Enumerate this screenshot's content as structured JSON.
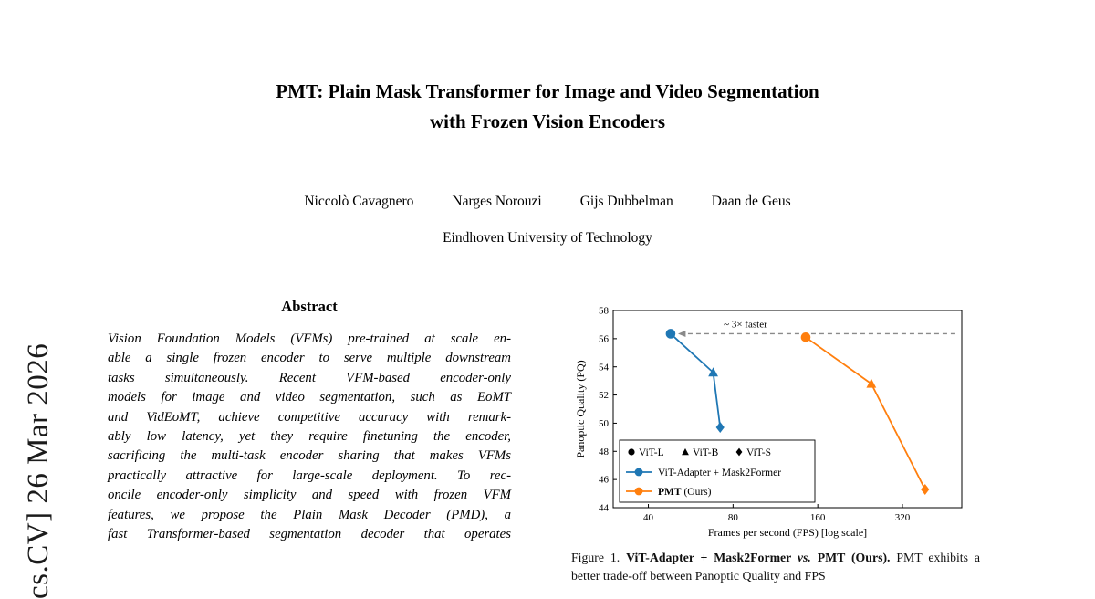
{
  "arxiv": {
    "label": "cs.CV]  26 Mar 2026"
  },
  "title": {
    "line1": "PMT: Plain Mask Transformer for Image and Video Segmentation",
    "line2": "with Frozen Vision Encoders"
  },
  "authors": [
    "Niccolò Cavagnero",
    "Narges Norouzi",
    "Gijs Dubbelman",
    "Daan de Geus"
  ],
  "affiliation": "Eindhoven University of Technology",
  "abstract": {
    "heading": "Abstract",
    "lines": [
      "Vision Foundation Models (VFMs) pre-trained at scale en-",
      "able a single frozen encoder to serve multiple downstream",
      "tasks simultaneously.  Recent VFM-based encoder-only",
      "models for image and video segmentation, such as EoMT",
      "and VidEoMT, achieve competitive accuracy with remark-",
      "ably low latency, yet they require finetuning the encoder,",
      "sacrificing the multi-task encoder sharing that makes VFMs",
      "practically attractive for large-scale deployment.  To rec-",
      "oncile encoder-only simplicity and speed with frozen VFM",
      "features, we propose the Plain Mask Decoder (PMD), a",
      "fast Transformer-based segmentation decoder that operates"
    ]
  },
  "figure": {
    "caption": {
      "seg_fig": "Figure 1. ",
      "seg_bold1": "ViT-Adapter + Mask2Former ",
      "seg_vs": "vs. ",
      "seg_bold2": "PMT (Ours).",
      "seg_rest": " PMT exhibits a better trade-off between Panoptic Quality and FPS"
    }
  },
  "chart_data": {
    "type": "line",
    "title": "",
    "xlabel": "Frames per second (FPS) [log scale]",
    "ylabel": "Panoptic Quality (PQ)",
    "x_scale": "log2",
    "xlim": [
      30,
      520
    ],
    "ylim": [
      44,
      58
    ],
    "x_ticks": [
      40,
      80,
      160,
      320
    ],
    "y_ticks": [
      44,
      46,
      48,
      50,
      52,
      54,
      56,
      58
    ],
    "grid": false,
    "legend_position": "lower-left",
    "annotation": {
      "text": "~ 3× faster",
      "between": "first points of both series",
      "color": "#8a8a8a"
    },
    "marker_legend": [
      {
        "label": "ViT-L",
        "marker": "circle"
      },
      {
        "label": "ViT-B",
        "marker": "triangle"
      },
      {
        "label": "ViT-S",
        "marker": "diamond"
      }
    ],
    "series": [
      {
        "name": "ViT-Adapter + Mask2Former",
        "name_bold": "",
        "name_rest": "ViT-Adapter + Mask2Former",
        "color": "#1f77b4",
        "points": [
          {
            "fps": 48,
            "pq": 56.35,
            "marker": "circle",
            "variant": "ViT-L"
          },
          {
            "fps": 68,
            "pq": 53.6,
            "marker": "triangle",
            "variant": "ViT-B"
          },
          {
            "fps": 72,
            "pq": 49.7,
            "marker": "diamond",
            "variant": "ViT-S"
          }
        ]
      },
      {
        "name": "PMT (Ours)",
        "name_bold": "PMT",
        "name_rest": " (Ours)",
        "color": "#ff7f0e",
        "points": [
          {
            "fps": 145,
            "pq": 56.1,
            "marker": "circle",
            "variant": "ViT-L"
          },
          {
            "fps": 248,
            "pq": 52.8,
            "marker": "triangle",
            "variant": "ViT-B"
          },
          {
            "fps": 385,
            "pq": 45.3,
            "marker": "diamond",
            "variant": "ViT-S"
          }
        ]
      }
    ]
  }
}
